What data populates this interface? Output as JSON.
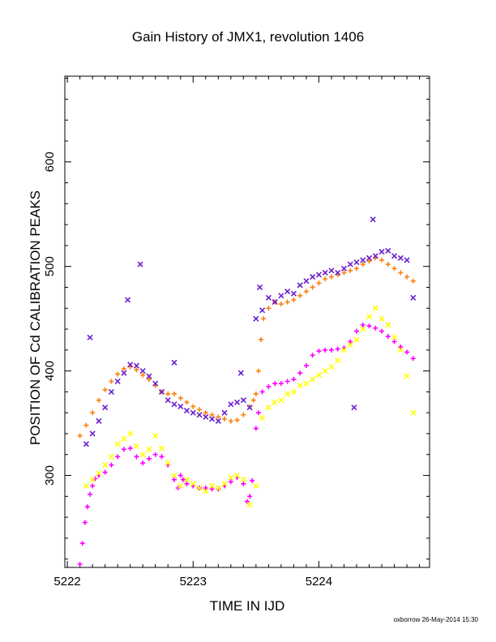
{
  "chart_data": {
    "type": "scatter",
    "title": "Gain History of JMX1, revolution 1406",
    "xlabel": "TIME IN IJD",
    "ylabel": "POSITION OF Cd CALIBRATION PEAKS",
    "xlim": [
      5221.98,
      5224.88
    ],
    "ylim": [
      212,
      682
    ],
    "xticks": [
      5222,
      5223,
      5224
    ],
    "yticks": [
      300,
      400,
      500,
      600
    ],
    "grid": false,
    "series": [
      {
        "color": "#ff7f0e",
        "marker": "plus",
        "x": [
          5222.1,
          5222.15,
          5222.2,
          5222.25,
          5222.3,
          5222.35,
          5222.4,
          5222.45,
          5222.5,
          5222.55,
          5222.6,
          5222.65,
          5222.7,
          5222.75,
          5222.8,
          5222.85,
          5222.9,
          5222.95,
          5223.0,
          5223.05,
          5223.1,
          5223.15,
          5223.2,
          5223.25,
          5223.3,
          5223.35,
          5223.4,
          5223.45,
          5223.48,
          5223.5,
          5223.52,
          5223.54,
          5223.56,
          5223.6,
          5223.65,
          5223.7,
          5223.75,
          5223.8,
          5223.85,
          5223.9,
          5223.95,
          5224.0,
          5224.05,
          5224.1,
          5224.15,
          5224.2,
          5224.25,
          5224.3,
          5224.35,
          5224.4,
          5224.45,
          5224.5,
          5224.55,
          5224.6,
          5224.65,
          5224.7,
          5224.75
        ],
        "y": [
          338,
          348,
          360,
          372,
          382,
          390,
          397,
          402,
          404,
          401,
          396,
          392,
          386,
          380,
          378,
          378,
          374,
          370,
          366,
          363,
          360,
          358,
          356,
          354,
          352,
          353,
          358,
          366,
          372,
          378,
          400,
          430,
          450,
          460,
          466,
          464,
          466,
          468,
          472,
          476,
          480,
          484,
          488,
          490,
          492,
          494,
          496,
          498,
          502,
          505,
          508,
          506,
          502,
          498,
          494,
          490,
          486
        ]
      },
      {
        "color": "#ff00ff",
        "marker": "plus",
        "x": [
          5222.1,
          5222.12,
          5222.14,
          5222.16,
          5222.18,
          5222.2,
          5222.22,
          5222.25,
          5222.3,
          5222.35,
          5222.4,
          5222.45,
          5222.5,
          5222.55,
          5222.6,
          5222.65,
          5222.7,
          5222.75,
          5222.8,
          5222.85,
          5222.88,
          5222.9,
          5222.92,
          5222.95,
          5223.0,
          5223.05,
          5223.1,
          5223.15,
          5223.2,
          5223.25,
          5223.3,
          5223.35,
          5223.4,
          5223.43,
          5223.45,
          5223.47,
          5223.5,
          5223.52,
          5223.55,
          5223.6,
          5223.65,
          5223.7,
          5223.75,
          5223.8,
          5223.85,
          5223.9,
          5223.95,
          5224.0,
          5224.05,
          5224.1,
          5224.15,
          5224.2,
          5224.25,
          5224.3,
          5224.35,
          5224.4,
          5224.45,
          5224.5,
          5224.55,
          5224.6,
          5224.65,
          5224.7,
          5224.75
        ],
        "y": [
          215,
          235,
          255,
          270,
          282,
          290,
          297,
          300,
          303,
          310,
          318,
          325,
          326,
          318,
          312,
          316,
          320,
          318,
          310,
          296,
          288,
          300,
          296,
          292,
          290,
          288,
          288,
          287,
          287,
          290,
          294,
          298,
          292,
          275,
          280,
          295,
          345,
          360,
          380,
          385,
          388,
          388,
          390,
          392,
          398,
          405,
          415,
          419,
          420,
          420,
          421,
          422,
          428,
          438,
          444,
          443,
          441,
          438,
          433,
          428,
          423,
          418,
          412
        ]
      },
      {
        "color": "#6a1fd0",
        "marker": "x",
        "x": [
          5222.15,
          5222.2,
          5222.25,
          5222.3,
          5222.35,
          5222.4,
          5222.45,
          5222.5,
          5222.55,
          5222.6,
          5222.65,
          5222.7,
          5222.75,
          5222.8,
          5222.85,
          5222.9,
          5222.95,
          5223.0,
          5223.05,
          5223.1,
          5223.15,
          5223.2,
          5223.25,
          5223.3,
          5223.35,
          5223.4,
          5223.45,
          5223.5,
          5223.55,
          5223.6,
          5223.65,
          5223.7,
          5223.75,
          5223.8,
          5223.85,
          5223.9,
          5223.95,
          5224.0,
          5224.05,
          5224.1,
          5224.15,
          5224.2,
          5224.25,
          5224.3,
          5224.35,
          5224.4,
          5224.45,
          5224.5,
          5224.55,
          5224.6,
          5224.65,
          5224.7,
          5224.75,
          5222.18,
          5222.58,
          5222.48,
          5222.85,
          5223.38,
          5223.53,
          5224.43,
          5224.28
        ],
        "y": [
          330,
          340,
          352,
          365,
          380,
          390,
          398,
          406,
          405,
          400,
          395,
          388,
          380,
          372,
          368,
          366,
          362,
          360,
          358,
          356,
          354,
          352,
          360,
          368,
          370,
          372,
          365,
          450,
          458,
          470,
          466,
          472,
          476,
          474,
          482,
          486,
          490,
          492,
          494,
          496,
          494,
          498,
          502,
          504,
          506,
          508,
          510,
          514,
          515,
          510,
          508,
          506,
          470,
          432,
          502,
          468,
          408,
          398,
          480,
          545,
          365
        ]
      },
      {
        "color": "#ffff00",
        "marker": "x",
        "x": [
          5222.15,
          5222.2,
          5222.25,
          5222.3,
          5222.35,
          5222.4,
          5222.45,
          5222.5,
          5222.55,
          5222.6,
          5222.65,
          5222.7,
          5222.75,
          5222.8,
          5222.85,
          5222.9,
          5222.95,
          5223.0,
          5223.05,
          5223.1,
          5223.15,
          5223.2,
          5223.25,
          5223.3,
          5223.35,
          5223.4,
          5223.45,
          5223.5,
          5223.55,
          5223.6,
          5223.65,
          5223.7,
          5223.75,
          5223.8,
          5223.85,
          5223.9,
          5223.95,
          5224.0,
          5224.05,
          5224.1,
          5224.15,
          5224.2,
          5224.25,
          5224.3,
          5224.35,
          5224.4,
          5224.45,
          5224.5,
          5224.55,
          5224.6,
          5224.65,
          5224.7,
          5224.75
        ],
        "y": [
          290,
          296,
          302,
          310,
          318,
          330,
          335,
          340,
          328,
          320,
          325,
          338,
          326,
          312,
          300,
          290,
          296,
          292,
          288,
          285,
          290,
          288,
          292,
          298,
          300,
          296,
          272,
          290,
          355,
          365,
          370,
          372,
          378,
          380,
          386,
          388,
          392,
          396,
          400,
          404,
          410,
          420,
          425,
          430,
          440,
          452,
          460,
          450,
          444,
          432,
          420,
          395,
          360
        ]
      }
    ],
    "footer": "oxborrow 26-May-2014 15:30"
  }
}
